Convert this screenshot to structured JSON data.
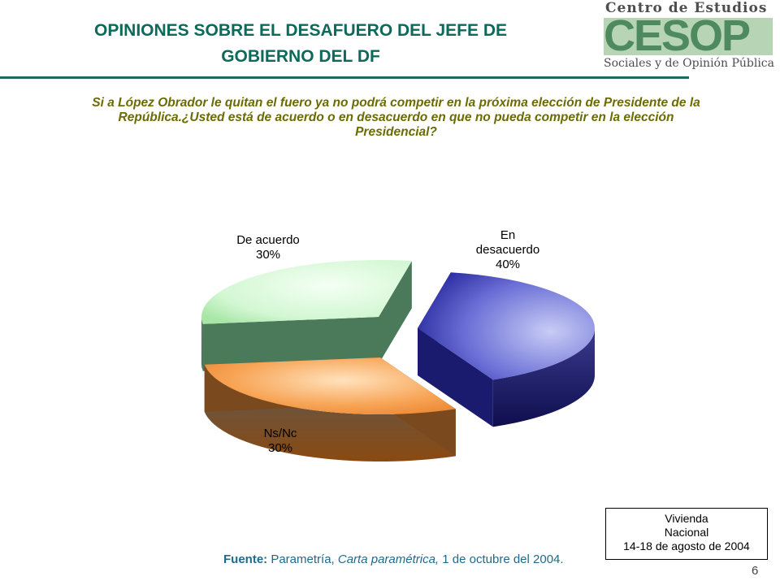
{
  "slide": {
    "title_line1": "OPINIONES SOBRE EL DESAFUERO DEL JEFE DE",
    "title_line2": "GOBIERNO DEL DF",
    "question_line1": "Si a López Obrador le quitan el fuero ya no podrá competir en la próxima elección de Presidente de la",
    "question_line2": "República.¿Usted está de acuerdo o en desacuerdo en que no pueda competir en la elección",
    "question_line3": "Presidencial?",
    "source_label": "Fuente:",
    "source_text1": " Parametría, ",
    "source_italic": "Carta paramétrica,",
    "source_text2": " 1 de octubre del 2004.",
    "box_line1": "Vivienda",
    "box_line2": "Nacional",
    "box_line3": "14-18 de agosto de 2004",
    "page_number": "6"
  },
  "logo": {
    "top_text": "Centro de Estudios",
    "word": "CESOP",
    "bottom_text": "Sociales y de Opinión Pública"
  },
  "chart_data": {
    "type": "pie",
    "title": "",
    "slices": [
      {
        "label_line1": "En",
        "label_line2": "desacuerdo",
        "value_label": "40%",
        "value": 40,
        "color_top": "#6b6fd6",
        "color_side": "#1a1a6e"
      },
      {
        "label_line1": "Ns/Nc",
        "label_line2": "",
        "value_label": "30%",
        "value": 30,
        "color_top": "#f7a354",
        "color_side": "#7a4a1e"
      },
      {
        "label_line1": "De acuerdo",
        "label_line2": "",
        "value_label": "30%",
        "value": 30,
        "color_top": "#d6f7d6",
        "color_side": "#4a7a5a"
      }
    ]
  }
}
